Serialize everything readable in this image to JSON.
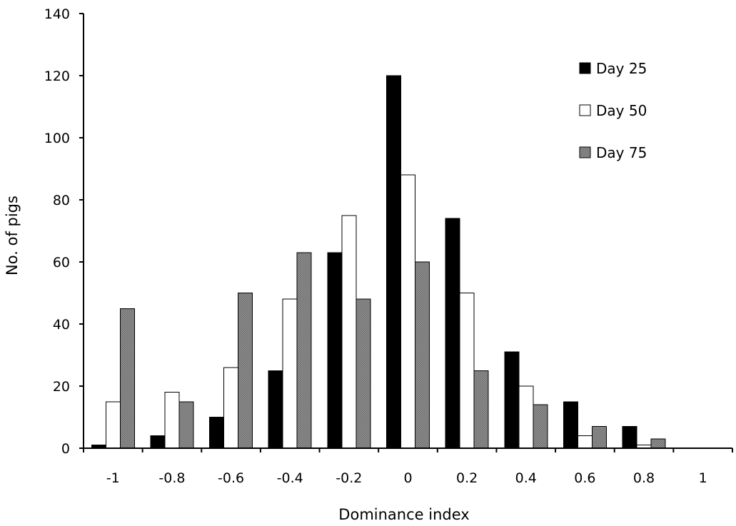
{
  "chart_data": {
    "type": "bar",
    "categories": [
      "-1",
      "-0.8",
      "-0.6",
      "-0.4",
      "-0.2",
      "0",
      "0.2",
      "0.4",
      "0.6",
      "0.8",
      "1"
    ],
    "series": [
      {
        "name": "Day 25",
        "color": "#000000",
        "values": [
          1,
          4,
          10,
          25,
          63,
          120,
          74,
          31,
          15,
          7,
          0
        ]
      },
      {
        "name": "Day 50",
        "color": "#ffffff",
        "values": [
          15,
          18,
          26,
          48,
          75,
          88,
          50,
          20,
          4,
          1,
          0
        ]
      },
      {
        "name": "Day 75",
        "color": "#888888",
        "values": [
          45,
          15,
          50,
          63,
          48,
          60,
          25,
          14,
          7,
          3,
          0
        ]
      }
    ],
    "xlabel": "Dominance index",
    "ylabel": "No. of pigs",
    "ylim": [
      0,
      140
    ],
    "yticks": [
      "0",
      "20",
      "40",
      "60",
      "80",
      "100",
      "120",
      "140"
    ],
    "grid": false,
    "legend_position": "top-right"
  }
}
